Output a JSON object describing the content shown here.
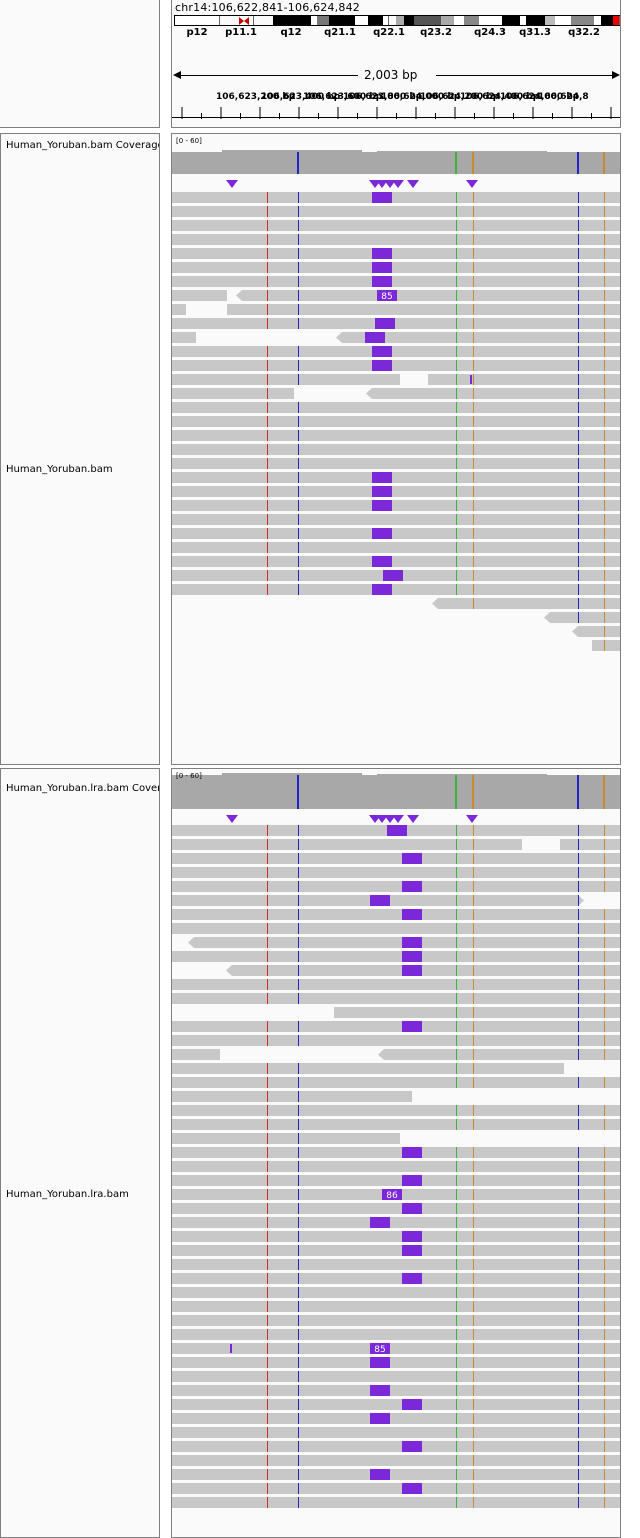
{
  "header": {
    "locus": "chr14:106,622,841-106,624,842",
    "bands": [
      "p12",
      "p11.1",
      "q12",
      "q21.1",
      "q22.1",
      "q23.2",
      "q24.3",
      "q31.3",
      "q32.2"
    ],
    "span_label": "2,003 bp",
    "ruler_ticks": [
      "106,623,200 bp",
      "106,623,400 bp",
      "106,623,600 bp",
      "106,623,800 bp",
      "106,624,000 bp",
      "106,624,200 bp",
      "106,624,400 bp",
      "106,624,600 bp",
      "106,624,8"
    ]
  },
  "tracks": [
    {
      "coverage_name": "Human_Yoruban.bam Coverage",
      "coverage_range": "[0 - 60]",
      "alignment_name": "Human_Yoruban.bam",
      "insertion_labels": [
        "85"
      ]
    },
    {
      "coverage_name": "Human_Yoruban.lra.bam Coverage",
      "coverage_range": "[0 - 60]",
      "alignment_name": "Human_Yoruban.lra.bam",
      "insertion_labels": [
        "86",
        "85"
      ]
    }
  ],
  "colors": {
    "read": "#c8c8c8",
    "insertion": "#7b28d8",
    "coverage": "#a8a8a8",
    "mismatch_red": "#d22b2b",
    "mismatch_blue": "#2222cc",
    "mismatch_green": "#3cb43c",
    "mismatch_orange": "#c88a2e"
  }
}
